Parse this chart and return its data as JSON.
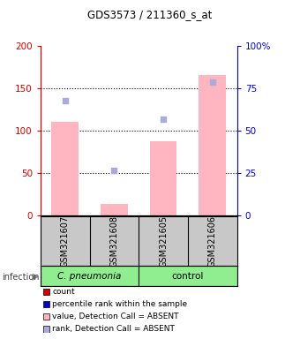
{
  "title": "GDS3573 / 211360_s_at",
  "samples": [
    "GSM321607",
    "GSM321608",
    "GSM321605",
    "GSM321606"
  ],
  "bar_values": [
    110,
    13,
    87,
    165
  ],
  "bar_color": "#FFB6C1",
  "rank_dots": [
    67.5,
    26.5,
    56.5,
    78.5
  ],
  "rank_dot_color": "#AAAADD",
  "ylim_left": [
    0,
    200
  ],
  "ylim_right": [
    0,
    100
  ],
  "yticks_left": [
    0,
    50,
    100,
    150,
    200
  ],
  "yticks_right": [
    0,
    25,
    50,
    75,
    100
  ],
  "yticklabels_left": [
    "0",
    "50",
    "100",
    "150",
    "200"
  ],
  "yticklabels_right": [
    "0",
    "25",
    "50",
    "75",
    "100%"
  ],
  "left_axis_color": "#CC0000",
  "right_axis_color": "#0000CC",
  "legend_labels": [
    "count",
    "percentile rank within the sample",
    "value, Detection Call = ABSENT",
    "rank, Detection Call = ABSENT"
  ],
  "legend_colors": [
    "#CC0000",
    "#0000CC",
    "#FFB6C1",
    "#AAAADD"
  ],
  "cp_color": "#90EE90",
  "ctrl_color": "#90EE90",
  "sample_box_color": "#C8C8C8",
  "infection_label": "infection"
}
